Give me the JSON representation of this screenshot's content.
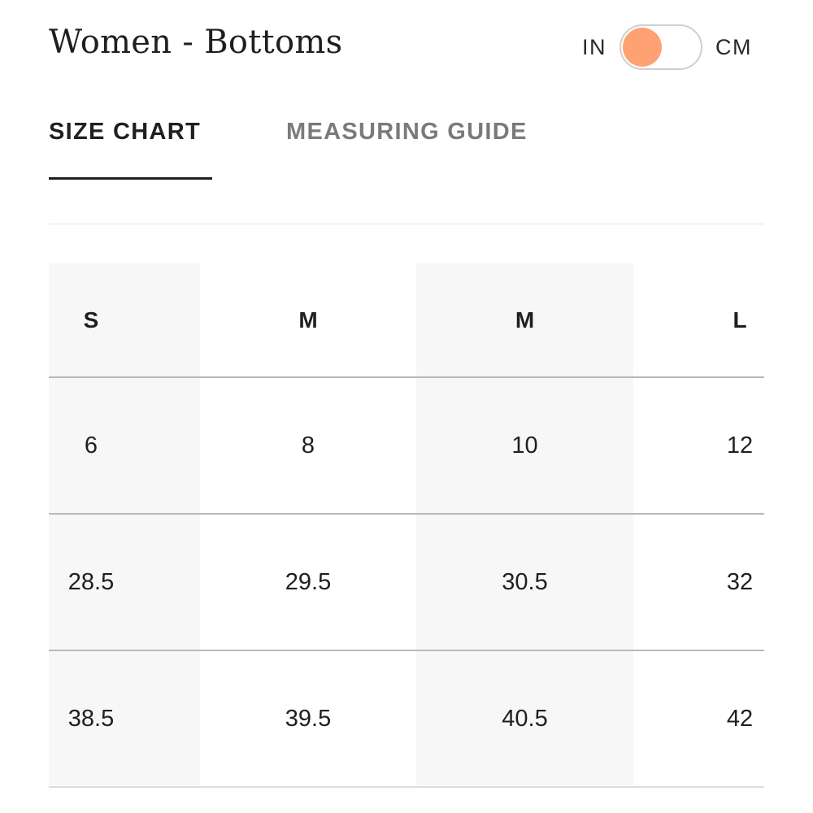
{
  "title": "Women - Bottoms",
  "unit_toggle": {
    "left_label": "IN",
    "right_label": "CM",
    "selected": "IN",
    "knob_color": "#FFA273"
  },
  "tabs": [
    {
      "label": "SIZE CHART",
      "active": true
    },
    {
      "label": "MEASURING GUIDE",
      "active": false
    }
  ],
  "size_table": {
    "header": [
      "S",
      "M",
      "M",
      "L"
    ],
    "rows": [
      [
        "6",
        "8",
        "10",
        "12"
      ],
      [
        "28.5",
        "29.5",
        "30.5",
        "32"
      ],
      [
        "38.5",
        "39.5",
        "40.5",
        "42"
      ]
    ]
  }
}
